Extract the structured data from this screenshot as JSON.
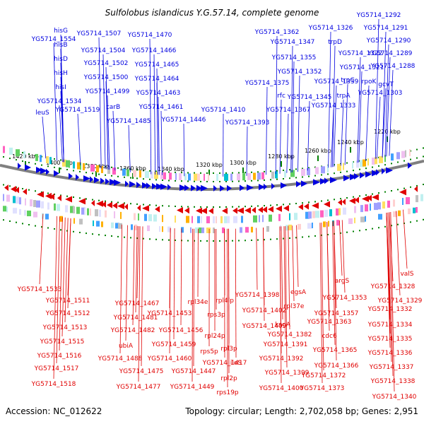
{
  "title": "Sulfolobus islandicus Y.G.57.14, complete genome",
  "footer": {
    "accession": "Accession: NC_012622",
    "summary": "Topology: circular; Length: 2,702,058 bp; Genes: 2,951"
  },
  "colors": {
    "forward": "#0000e0",
    "reverse": "#e00000",
    "backbone": "#808080",
    "ticks": "#008000",
    "text": "#000000"
  },
  "scale_labels": [
    "1420 kbp",
    "1400 kbp",
    "1380 kbp",
    "1360 kbp",
    "1340 kbp",
    "1320 kbp",
    "1300 kbp",
    "1280 kbp",
    "1260 kbp",
    "1240 kbp",
    "1220 kbp"
  ],
  "forward_labels": [
    "YG5714_1554",
    "hisG",
    "hisB",
    "hisD",
    "hisH",
    "hisI",
    "YG5714_1534",
    "leuS",
    "YG5714_1519",
    "YG5714_1507",
    "YG5714_1504",
    "YG5714_1502",
    "YG5714_1500",
    "YG5714_1499",
    "carB",
    "YG5714_1485",
    "YG5714_1470",
    "YG5714_1466",
    "YG5714_1465",
    "YG5714_1464",
    "YG5714_1463",
    "YG5714_1461",
    "YG5714_1446",
    "YG5714_1410",
    "YG5714_1393",
    "YG5714_1362",
    "YG5714_1347",
    "YG5714_1355",
    "YG5714_1352",
    "YG5714_1375",
    "rfc",
    "YG5714_1367",
    "YG5714_1339",
    "YG5714_1345",
    "YG5714_1333",
    "YG5714_1326",
    "trpD",
    "YG5714_1322",
    "YG5714_1321",
    "trpC",
    "trpA",
    "YG5714_1292",
    "YG5714_1291",
    "YG5714_1290",
    "YG5714_1289",
    "YG5714_1288",
    "rpoK",
    "gcvT",
    "YG5714_1303"
  ],
  "reverse_labels": [
    "YG5714_1533",
    "YG5714_1511",
    "YG5714_1512",
    "YG5714_1513",
    "YG5714_1515",
    "YG5714_1516",
    "YG5714_1517",
    "YG5714_1518",
    "YG5714_1467",
    "YG5714_1481",
    "YG5714_1482",
    "ubiA",
    "YG5714_1488",
    "YG5714_1475",
    "YG5714_1477",
    "YG5714_1453",
    "YG5714_1456",
    "YG5714_1459",
    "YG5714_1460",
    "YG5714_1447",
    "YG5714_1449",
    "rpl34e",
    "rps3p",
    "rps5p",
    "rpl24p",
    "rpl4lp",
    "rpl3p",
    "ileS",
    "YG5714_1417",
    "rpl2p",
    "rps19p",
    "YG5714_1402",
    "YG5714_1409",
    "YG5714_1398",
    "YG5714_1382",
    "YG5714_1391",
    "YG5714_1392",
    "YG5714_1399",
    "YG5714_1400",
    "ksgA",
    "rpl37e",
    "egsA",
    "cdc6",
    "YG5714_1357",
    "YG5714_1363",
    "YG5714_1365",
    "YG5714_1366",
    "YG5714_1372",
    "YG5714_1373",
    "argS",
    "YG5714_1353",
    "valS",
    "YG5714_1328",
    "YG5714_1329",
    "YG5714_1332",
    "YG5714_1334",
    "YG5714_1335",
    "YG5714_1336",
    "YG5714_1337",
    "YG5714_1338",
    "YG5714_1340"
  ]
}
